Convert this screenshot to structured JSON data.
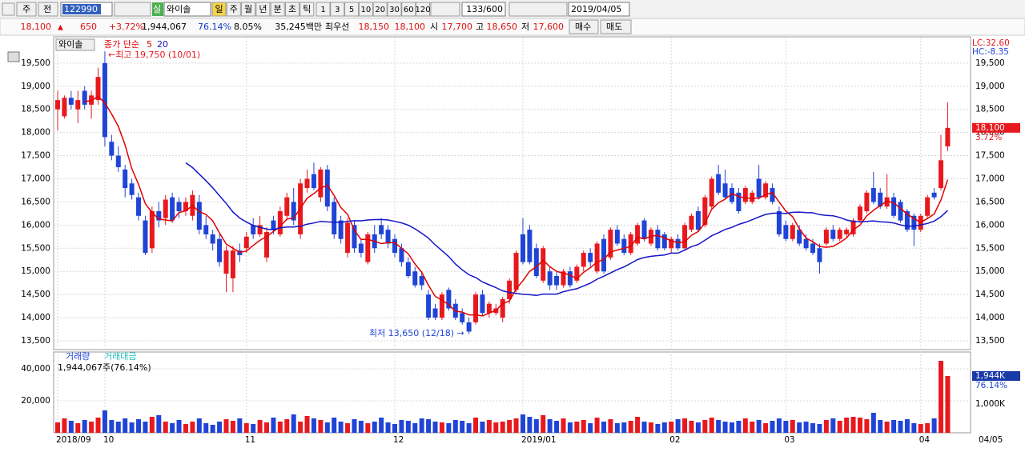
{
  "toolbar": {
    "period_prefix": "주",
    "market": "전",
    "code": "122990",
    "real": "실",
    "name": "와이솔",
    "periods": [
      "일",
      "주",
      "월",
      "년",
      "분",
      "초",
      "틱"
    ],
    "intervals": [
      "1",
      "3",
      "5",
      "10",
      "20",
      "30",
      "60",
      "120"
    ],
    "count": "133/600",
    "date": "2019/04/05"
  },
  "quote": {
    "price": "18,100",
    "change_sign": "▲",
    "change": "650",
    "change_pct": "+3.72%",
    "volume": "1,944,067",
    "volume_ratio": "76.14%",
    "turnover": "8.05%",
    "amount": "35,245백만",
    "best_label": "최우선",
    "best_ask": "18,150",
    "best_bid": "18,100",
    "open_label": "시",
    "open": "17,700",
    "high_label": "고",
    "high": "18,650",
    "low_label": "저",
    "low": "17,600",
    "buy": "매수",
    "sell": "매도"
  },
  "chart_data": {
    "type": "candlestick",
    "stock_label": "와이솔",
    "ma_label": "종가 단순",
    "ma_periods": [
      5,
      20
    ],
    "ma_colors": [
      "#e00000",
      "#1414c8"
    ],
    "up_color": "#e8191e",
    "down_color": "#1f44d6",
    "ohlc": [
      [
        18500,
        18900,
        18050,
        18700
      ],
      [
        18350,
        18800,
        18300,
        18750
      ],
      [
        18750,
        18900,
        18500,
        18600
      ],
      [
        18500,
        18900,
        18200,
        18700
      ],
      [
        18900,
        19000,
        18500,
        18600
      ],
      [
        18600,
        18900,
        18300,
        18800
      ],
      [
        18700,
        19400,
        18600,
        19200
      ],
      [
        19500,
        19750,
        17700,
        17900
      ],
      [
        17800,
        17950,
        17400,
        17500
      ],
      [
        17500,
        17700,
        17150,
        17250
      ],
      [
        17200,
        17300,
        16600,
        16800
      ],
      [
        16900,
        17000,
        16550,
        16650
      ],
      [
        16600,
        16700,
        16100,
        16200
      ],
      [
        16100,
        16200,
        15350,
        15400
      ],
      [
        15500,
        16400,
        15400,
        16300
      ],
      [
        16300,
        16500,
        15950,
        16100
      ],
      [
        16150,
        16650,
        16000,
        16550
      ],
      [
        16600,
        16700,
        16050,
        16100
      ],
      [
        16500,
        16600,
        16150,
        16300
      ],
      [
        16300,
        16600,
        16200,
        16500
      ],
      [
        16200,
        16750,
        16100,
        16650
      ],
      [
        16500,
        16650,
        15800,
        15900
      ],
      [
        16000,
        16200,
        15700,
        15800
      ],
      [
        15800,
        15900,
        15450,
        15600
      ],
      [
        15700,
        15800,
        15100,
        15200
      ],
      [
        14950,
        15550,
        14550,
        15450
      ],
      [
        14850,
        15550,
        14550,
        15450
      ],
      [
        15450,
        15600,
        15200,
        15350
      ],
      [
        15500,
        15850,
        15400,
        15750
      ],
      [
        16000,
        16150,
        15700,
        15800
      ],
      [
        15800,
        16200,
        15750,
        16000
      ],
      [
        15300,
        15950,
        15200,
        15850
      ],
      [
        16100,
        16200,
        15800,
        15900
      ],
      [
        15800,
        16400,
        15750,
        16300
      ],
      [
        16200,
        16700,
        16100,
        16600
      ],
      [
        16500,
        16800,
        16000,
        16100
      ],
      [
        15800,
        17000,
        15700,
        16900
      ],
      [
        16800,
        17200,
        16700,
        17000
      ],
      [
        17100,
        17350,
        16750,
        16800
      ],
      [
        16600,
        17250,
        16500,
        17200
      ],
      [
        17200,
        17300,
        16300,
        16400
      ],
      [
        16500,
        16600,
        15700,
        15800
      ],
      [
        16100,
        16200,
        15600,
        15700
      ],
      [
        15400,
        16150,
        15300,
        16050
      ],
      [
        16000,
        16100,
        15400,
        15500
      ],
      [
        15600,
        15700,
        15300,
        15400
      ],
      [
        15200,
        15850,
        15150,
        15800
      ],
      [
        15800,
        16000,
        15400,
        15500
      ],
      [
        16000,
        16150,
        15700,
        15800
      ],
      [
        15900,
        16000,
        15500,
        15600
      ],
      [
        15700,
        15800,
        15300,
        15400
      ],
      [
        15500,
        15600,
        15100,
        15200
      ],
      [
        15200,
        15300,
        14850,
        14900
      ],
      [
        15000,
        15100,
        14650,
        14700
      ],
      [
        14900,
        15000,
        14600,
        14700
      ],
      [
        14500,
        14600,
        13950,
        14000
      ],
      [
        14200,
        14300,
        13950,
        14000
      ],
      [
        14000,
        14550,
        13950,
        14500
      ],
      [
        14600,
        14650,
        14150,
        14200
      ],
      [
        14300,
        14400,
        13950,
        14000
      ],
      [
        14100,
        14200,
        13850,
        13900
      ],
      [
        13900,
        14000,
        13650,
        13700
      ],
      [
        13900,
        14550,
        13850,
        14500
      ],
      [
        14500,
        14600,
        14050,
        14100
      ],
      [
        14100,
        14350,
        14000,
        14300
      ],
      [
        14100,
        14300,
        14050,
        14200
      ],
      [
        14000,
        14450,
        13900,
        14400
      ],
      [
        14400,
        14850,
        14300,
        14800
      ],
      [
        14600,
        15450,
        14550,
        15400
      ],
      [
        15800,
        16150,
        15150,
        15200
      ],
      [
        15900,
        16000,
        15150,
        15200
      ],
      [
        15500,
        15600,
        14850,
        14900
      ],
      [
        14800,
        15550,
        14750,
        15500
      ],
      [
        15000,
        15100,
        14600,
        14700
      ],
      [
        14900,
        15000,
        14600,
        14700
      ],
      [
        14700,
        15050,
        14650,
        15000
      ],
      [
        15000,
        15100,
        14650,
        14700
      ],
      [
        14800,
        15150,
        14750,
        15100
      ],
      [
        15100,
        15450,
        15000,
        15400
      ],
      [
        15400,
        15500,
        15100,
        15200
      ],
      [
        15000,
        15650,
        14950,
        15600
      ],
      [
        15700,
        15800,
        14950,
        15000
      ],
      [
        15300,
        15950,
        15250,
        15900
      ],
      [
        15900,
        16000,
        15550,
        15600
      ],
      [
        15700,
        15800,
        15350,
        15400
      ],
      [
        15400,
        15850,
        15350,
        15800
      ],
      [
        15600,
        16050,
        15550,
        16000
      ],
      [
        16100,
        16150,
        15650,
        15700
      ],
      [
        15600,
        15950,
        15550,
        15900
      ],
      [
        15900,
        16000,
        15450,
        15500
      ],
      [
        15800,
        15850,
        15450,
        15500
      ],
      [
        15500,
        15750,
        15400,
        15700
      ],
      [
        15700,
        15800,
        15450,
        15500
      ],
      [
        15500,
        16050,
        15450,
        16000
      ],
      [
        15900,
        16250,
        15850,
        16200
      ],
      [
        16300,
        16400,
        15850,
        15900
      ],
      [
        16000,
        16650,
        15950,
        16600
      ],
      [
        16400,
        17050,
        16350,
        17000
      ],
      [
        17100,
        17300,
        16650,
        16700
      ],
      [
        16900,
        17200,
        16550,
        16600
      ],
      [
        16800,
        16900,
        16450,
        16500
      ],
      [
        16700,
        16800,
        16250,
        16300
      ],
      [
        16500,
        16850,
        16450,
        16800
      ],
      [
        16500,
        16750,
        16450,
        16700
      ],
      [
        17000,
        17300,
        16550,
        16600
      ],
      [
        16600,
        16950,
        16550,
        16900
      ],
      [
        16800,
        16900,
        16450,
        16500
      ],
      [
        16300,
        16400,
        15750,
        15800
      ],
      [
        16000,
        16100,
        15650,
        15700
      ],
      [
        15700,
        16050,
        15650,
        16000
      ],
      [
        15900,
        16000,
        15550,
        15600
      ],
      [
        15700,
        15800,
        15450,
        15500
      ],
      [
        15600,
        15700,
        15350,
        15400
      ],
      [
        15500,
        15600,
        14950,
        15200
      ],
      [
        15600,
        15950,
        15550,
        15900
      ],
      [
        15900,
        16000,
        15650,
        15700
      ],
      [
        15700,
        15950,
        15650,
        15900
      ],
      [
        15800,
        15950,
        15750,
        15900
      ],
      [
        15800,
        16150,
        15750,
        16100
      ],
      [
        16100,
        16450,
        16050,
        16400
      ],
      [
        16300,
        16750,
        16250,
        16700
      ],
      [
        16800,
        17150,
        16450,
        16500
      ],
      [
        16700,
        16800,
        16350,
        16400
      ],
      [
        16400,
        17100,
        16350,
        16600
      ],
      [
        16600,
        16700,
        16150,
        16200
      ],
      [
        16500,
        16550,
        16050,
        16100
      ],
      [
        16300,
        16350,
        15850,
        15900
      ],
      [
        16200,
        16250,
        15550,
        15900
      ],
      [
        15900,
        16250,
        15850,
        16200
      ],
      [
        16200,
        16650,
        16150,
        16600
      ],
      [
        16700,
        16800,
        16550,
        16600
      ],
      [
        16800,
        17950,
        16750,
        17400
      ],
      [
        17700,
        18650,
        17600,
        18100
      ]
    ],
    "ylim": [
      13310,
      20050
    ],
    "yticks": [
      {
        "value": 13500,
        "label": "13,500"
      },
      {
        "value": 14000,
        "label": "14,000"
      },
      {
        "value": 14500,
        "label": "14,500"
      },
      {
        "value": 15000,
        "label": "15,000"
      },
      {
        "value": 15500,
        "label": "15,500"
      },
      {
        "value": 16000,
        "label": "16,000"
      },
      {
        "value": 16500,
        "label": "16,500"
      },
      {
        "value": 17000,
        "label": "17,000"
      },
      {
        "value": 17500,
        "label": "17,500"
      },
      {
        "value": 18000,
        "label": "18,000"
      },
      {
        "value": 18500,
        "label": "18,500"
      },
      {
        "value": 19000,
        "label": "19,000"
      },
      {
        "value": 19500,
        "label": "19,500"
      }
    ],
    "high_note": "←최고 19,750 (10/01)",
    "low_note": "최저 13,650 (12/18) →",
    "lc": "LC:32.60",
    "hc": "HC:-8.35",
    "last_price_label": "18,100",
    "last_change_label": "3.72%",
    "volume_labels": [
      "거래량",
      "거래대금"
    ],
    "volume_note": "1,944,067주(76.14%)",
    "volume": [
      6500,
      9000,
      7500,
      6000,
      8000,
      7000,
      9500,
      14000,
      8000,
      7000,
      9000,
      6500,
      8500,
      7000,
      10000,
      11000,
      7000,
      6000,
      8000,
      5500,
      7000,
      9000,
      6000,
      5000,
      7000,
      8500,
      7500,
      9000,
      6000,
      5500,
      8000,
      6500,
      9500,
      7000,
      8500,
      11500,
      7000,
      10500,
      9000,
      8000,
      6500,
      9500,
      7000,
      6000,
      8500,
      7500,
      6000,
      7000,
      9500,
      6500,
      5500,
      8000,
      7500,
      6000,
      9000,
      8500,
      7000,
      6500,
      6000,
      8000,
      7500,
      6000,
      9500,
      7000,
      8000,
      6500,
      7000,
      8000,
      9000,
      11500,
      10000,
      8500,
      11000,
      8500,
      7500,
      9000,
      6500,
      7000,
      8000,
      6000,
      9500,
      7000,
      8500,
      6000,
      6500,
      7500,
      10000,
      7000,
      6500,
      5500,
      6500,
      7000,
      8500,
      9000,
      7500,
      6500,
      8000,
      9500,
      8000,
      7000,
      6500,
      7500,
      9000,
      7000,
      8000,
      6000,
      7500,
      9000,
      7500,
      8000,
      6500,
      7000,
      6000,
      5500,
      8000,
      9000,
      7500,
      9500,
      10000,
      9500,
      8500,
      12500,
      8000,
      7000,
      8000,
      7500,
      8500,
      6000,
      5500,
      6000,
      9000,
      45000,
      35500
    ],
    "vlim": [
      0,
      49500
    ],
    "vticks": [
      {
        "value": 20000,
        "label": "20,000"
      },
      {
        "value": 40000,
        "label": "40,000"
      }
    ],
    "value_tags": [
      "1,944K",
      "76.14%"
    ],
    "value_tick": "1,000K",
    "xlabels": [
      {
        "index": 0,
        "label": "2018/09"
      },
      {
        "index": 7,
        "label": "10"
      },
      {
        "index": 28,
        "label": "11"
      },
      {
        "index": 50,
        "label": "12"
      },
      {
        "index": 69,
        "label": "2019/01"
      },
      {
        "index": 91,
        "label": "02"
      },
      {
        "index": 108,
        "label": "03"
      },
      {
        "index": 128,
        "label": "04"
      }
    ],
    "last_date": "04/05",
    "grid": true
  }
}
